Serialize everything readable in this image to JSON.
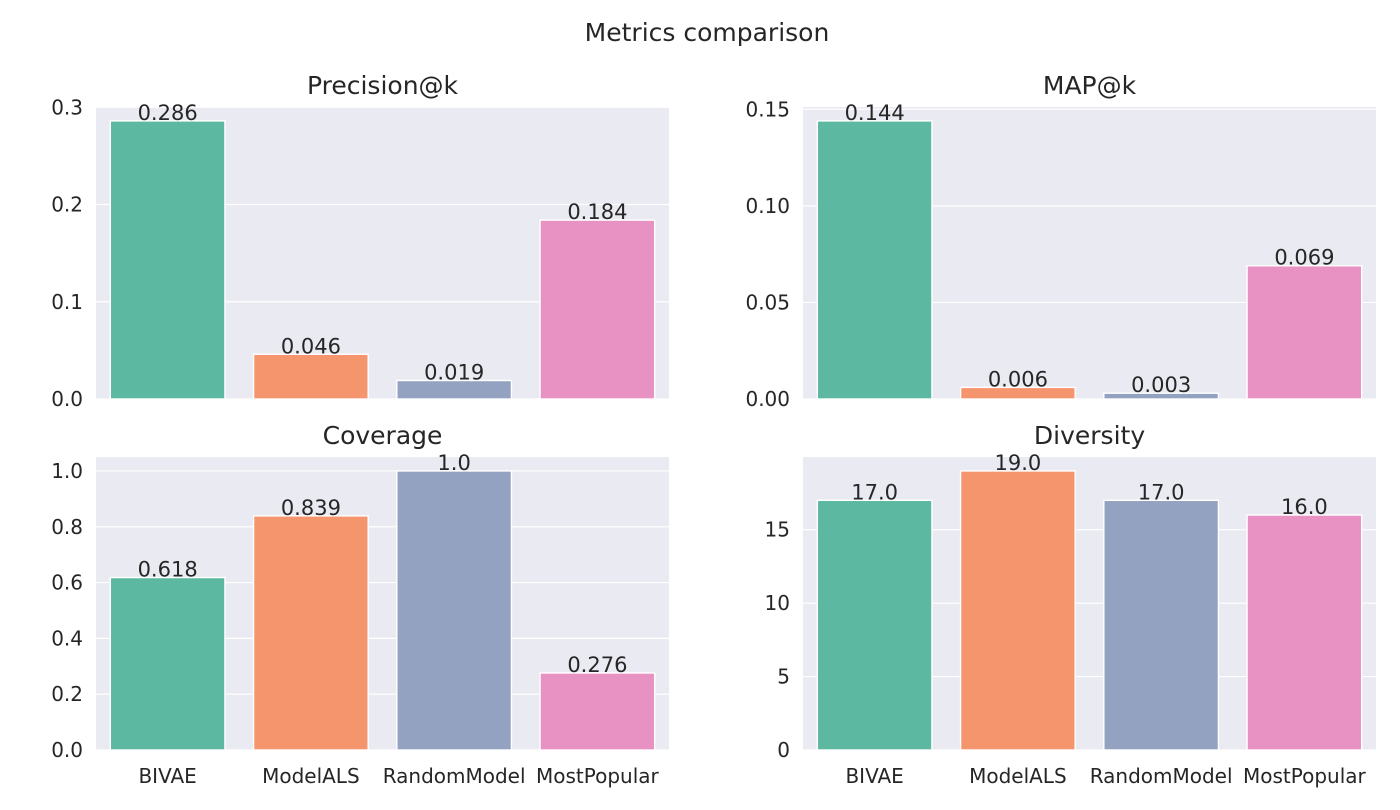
{
  "title": "Metrics comparison",
  "chart_data": [
    {
      "type": "bar",
      "title": "Precision@k",
      "categories": [
        "BIVAE",
        "ModelALS",
        "RandomModel",
        "MostPopular"
      ],
      "values": [
        0.286,
        0.046,
        0.019,
        0.184
      ],
      "data_labels": [
        "0.286",
        "0.046",
        "0.019",
        "0.184"
      ],
      "yticks": [
        "0.0",
        "0.1",
        "0.2",
        "0.3"
      ],
      "ytick_values": [
        0,
        0.1,
        0.2,
        0.3
      ],
      "ylim": [
        0,
        0.3003
      ],
      "show_xticks": false,
      "grid": true,
      "colors": [
        "#5cb8a0",
        "#f5956e",
        "#93a2c1",
        "#e792c3"
      ]
    },
    {
      "type": "bar",
      "title": "MAP@k",
      "categories": [
        "BIVAE",
        "ModelALS",
        "RandomModel",
        "MostPopular"
      ],
      "values": [
        0.144,
        0.006,
        0.003,
        0.069
      ],
      "data_labels": [
        "0.144",
        "0.006",
        "0.003",
        "0.069"
      ],
      "yticks": [
        "0.00",
        "0.05",
        "0.10",
        "0.15"
      ],
      "ytick_values": [
        0,
        0.05,
        0.1,
        0.15
      ],
      "ylim": [
        0,
        0.1512
      ],
      "show_xticks": false,
      "grid": true,
      "colors": [
        "#5cb8a0",
        "#f5956e",
        "#93a2c1",
        "#e792c3"
      ]
    },
    {
      "type": "bar",
      "title": "Coverage",
      "categories": [
        "BIVAE",
        "ModelALS",
        "RandomModel",
        "MostPopular"
      ],
      "values": [
        0.618,
        0.839,
        1.0,
        0.276
      ],
      "data_labels": [
        "0.618",
        "0.839",
        "1.0",
        "0.276"
      ],
      "yticks": [
        "0.0",
        "0.2",
        "0.4",
        "0.6",
        "0.8",
        "1.0"
      ],
      "ytick_values": [
        0,
        0.2,
        0.4,
        0.6,
        0.8,
        1.0
      ],
      "ylim": [
        0,
        1.05
      ],
      "show_xticks": true,
      "grid": true,
      "colors": [
        "#5cb8a0",
        "#f5956e",
        "#93a2c1",
        "#e792c3"
      ]
    },
    {
      "type": "bar",
      "title": "Diversity",
      "categories": [
        "BIVAE",
        "ModelALS",
        "RandomModel",
        "MostPopular"
      ],
      "values": [
        17.0,
        19.0,
        17.0,
        16.0
      ],
      "data_labels": [
        "17.0",
        "19.0",
        "17.0",
        "16.0"
      ],
      "yticks": [
        "0",
        "5",
        "10",
        "15"
      ],
      "ytick_values": [
        0,
        5,
        10,
        15
      ],
      "ylim": [
        0,
        19.95
      ],
      "show_xticks": true,
      "grid": true,
      "colors": [
        "#5cb8a0",
        "#f5956e",
        "#93a2c1",
        "#e792c3"
      ]
    }
  ]
}
